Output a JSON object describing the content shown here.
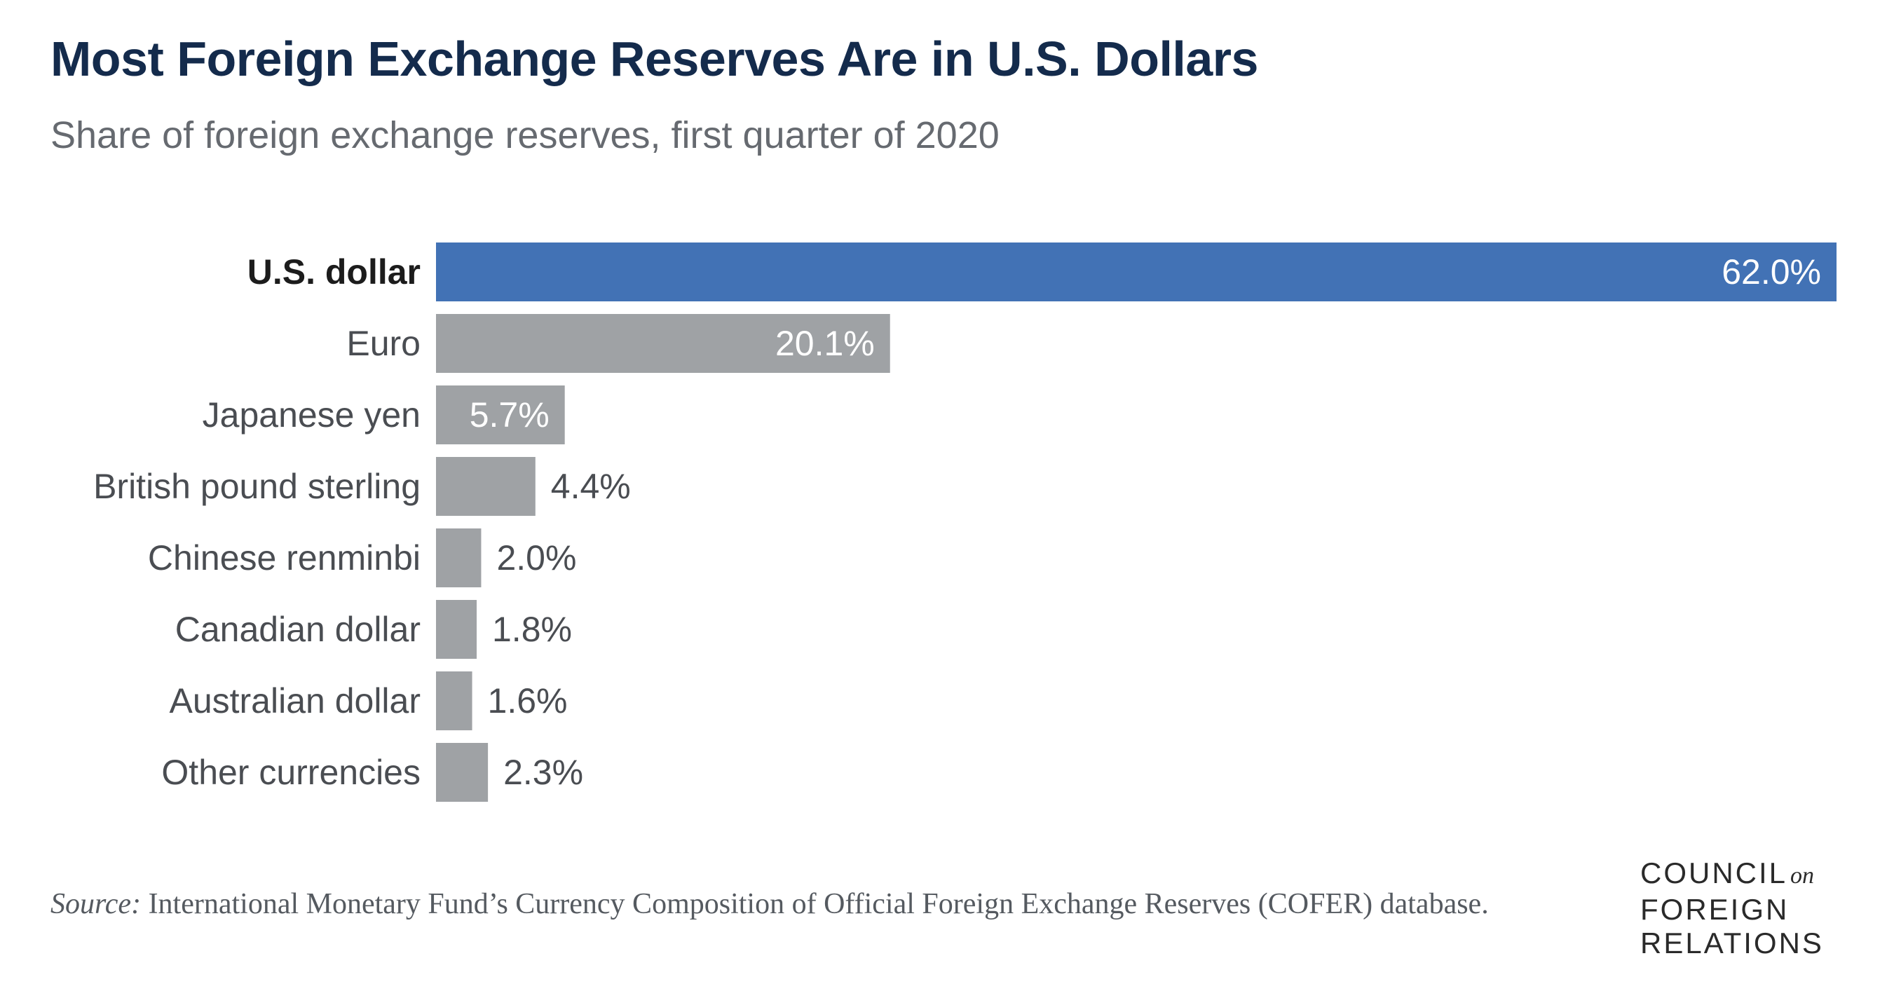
{
  "header": {
    "title": "Most Foreign Exchange Reserves Are in U.S. Dollars",
    "subtitle": "Share of foreign exchange reserves, first quarter of 2020"
  },
  "chart_data": {
    "type": "bar",
    "orientation": "horizontal",
    "title": "Most Foreign Exchange Reserves Are in U.S. Dollars",
    "subtitle": "Share of foreign exchange reserves, first quarter of 2020",
    "categories": [
      "U.S. dollar",
      "Euro",
      "Japanese yen",
      "British pound sterling",
      "Chinese renminbi",
      "Canadian dollar",
      "Australian dollar",
      "Other currencies"
    ],
    "values": [
      62.0,
      20.1,
      5.7,
      4.4,
      2.0,
      1.8,
      1.6,
      2.3
    ],
    "value_labels": [
      "62.0%",
      "20.1%",
      "5.7%",
      "4.4%",
      "2.0%",
      "1.8%",
      "1.6%",
      "2.3%"
    ],
    "highlight_index": 0,
    "xlim": [
      0,
      62.0
    ],
    "grid": false,
    "legend": "none",
    "colors": {
      "highlight": "#4272b5",
      "default": "#9fa2a5",
      "label_inside": "#ffffff",
      "label_outside": "#4a4d52"
    }
  },
  "footer": {
    "source_label": "Source:",
    "source_text": " International Monetary Fund’s Currency Composition of Official Foreign Exchange Reserves (COFER) database.",
    "logo_line1": "COUNCIL",
    "logo_on": "on",
    "logo_line2": "FOREIGN",
    "logo_line3": "RELATIONS"
  }
}
